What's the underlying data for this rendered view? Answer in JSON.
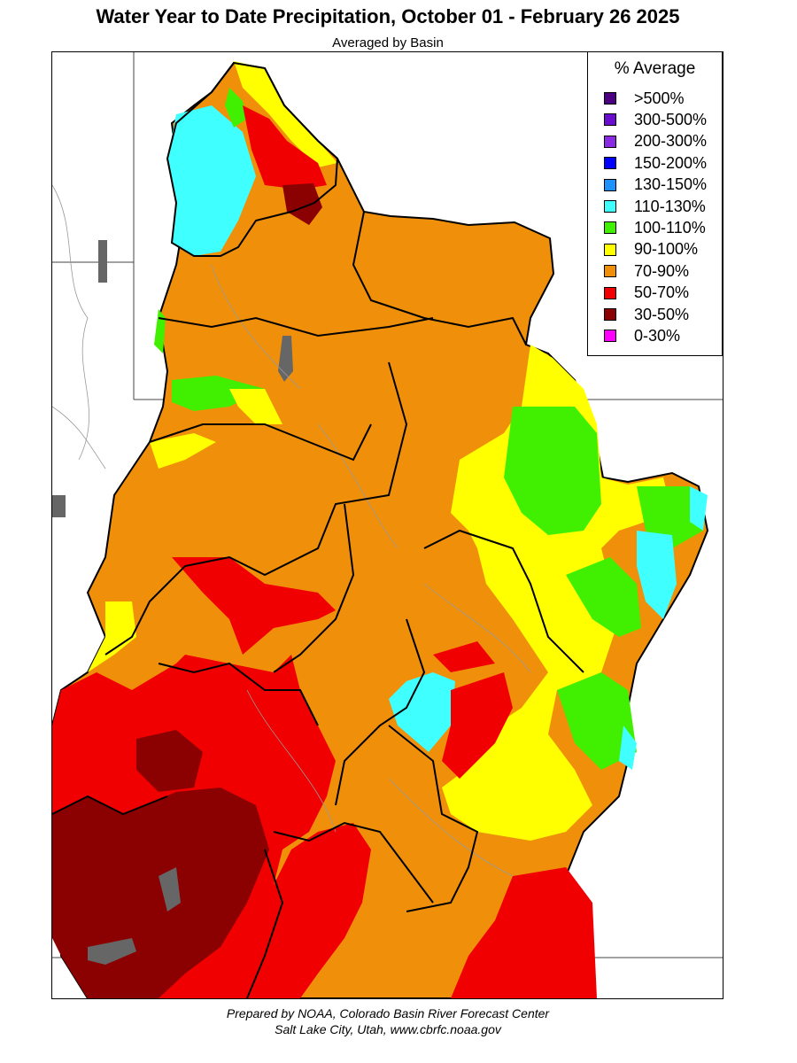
{
  "header": {
    "title": "Water Year to Date Precipitation, October 01  - February 26 2025",
    "subtitle": "Averaged by Basin"
  },
  "legend": {
    "title": "% Average",
    "items": [
      {
        "label": ">500%",
        "color": "#4b0082"
      },
      {
        "label": "300-500%",
        "color": "#6a0dcc"
      },
      {
        "label": "200-300%",
        "color": "#8a2be2"
      },
      {
        "label": "150-200%",
        "color": "#0000ff"
      },
      {
        "label": "130-150%",
        "color": "#1e90ff"
      },
      {
        "label": "110-130%",
        "color": "#40ffff"
      },
      {
        "label": "100-110%",
        "color": "#40f000"
      },
      {
        "label": "90-100%",
        "color": "#ffff00"
      },
      {
        "label": "70-90%",
        "color": "#f0900a"
      },
      {
        "label": "50-70%",
        "color": "#f00000"
      },
      {
        "label": "30-50%",
        "color": "#8b0000"
      },
      {
        "label": "0-30%",
        "color": "#ff00ff"
      }
    ]
  },
  "footer": {
    "line1": "Prepared by NOAA, Colorado Basin River Forecast Center",
    "line2": "Salt Lake City, Utah, www.cbrfc.noaa.gov"
  }
}
